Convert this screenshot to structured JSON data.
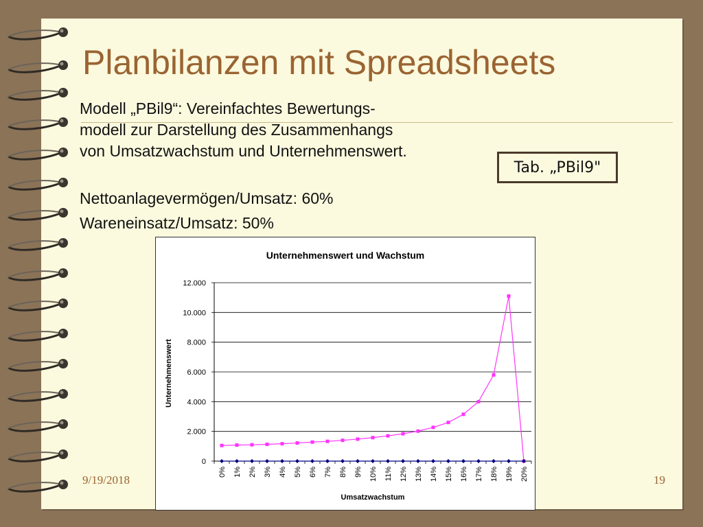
{
  "slide": {
    "title": "Planbilanzen mit Spreadsheets",
    "paragraph_lines": [
      "Modell „PBil9“: Vereinfachtes Bewertungs-",
      "modell zur Darstellung des Zusammenhangs",
      "von Umsatzwachstum und Unternehmenswert."
    ],
    "param_lines": [
      "Nettoanlagevermögen/Umsatz: 60%",
      "Wareneinsatz/Umsatz: 50%"
    ],
    "table_ref": "Tab. „PBil9\"",
    "date": "9/19/2018",
    "page_number": "19"
  },
  "colors": {
    "page_bg": "#fbf9de",
    "frame_bg": "#8b7358",
    "title": "#9a6432",
    "series_1": "#ff33ff",
    "series_2": "#000080",
    "grid": "#000000"
  },
  "chart_data": {
    "type": "line",
    "title": "Unternehmenswert und Wachstum",
    "xlabel": "Umsatzwachstum",
    "ylabel": "Unternehmenswert",
    "ylim": [
      0,
      12000
    ],
    "yticks": [
      0,
      2000,
      4000,
      6000,
      8000,
      10000,
      12000
    ],
    "ytick_labels": [
      "0",
      "2.000",
      "4.000",
      "6.000",
      "8.000",
      "10.000",
      "12.000"
    ],
    "grid": true,
    "legend": "none",
    "categories": [
      "0%",
      "1%",
      "2%",
      "3%",
      "4%",
      "5%",
      "6%",
      "7%",
      "8%",
      "9%",
      "10%",
      "11%",
      "12%",
      "13%",
      "14%",
      "15%",
      "16%",
      "17%",
      "18%",
      "19%",
      "20%"
    ],
    "series": [
      {
        "color": "#ff33ff",
        "marker": "square",
        "values": [
          1050,
          1080,
          1100,
          1130,
          1170,
          1220,
          1280,
          1330,
          1400,
          1480,
          1580,
          1700,
          1840,
          2020,
          2270,
          2600,
          3150,
          4000,
          5800,
          11100,
          0
        ]
      },
      {
        "color": "#000080",
        "marker": "diamond",
        "values": [
          0,
          0,
          0,
          0,
          0,
          0,
          0,
          0,
          0,
          0,
          0,
          0,
          0,
          0,
          0,
          0,
          0,
          0,
          0,
          0,
          0
        ]
      }
    ]
  }
}
